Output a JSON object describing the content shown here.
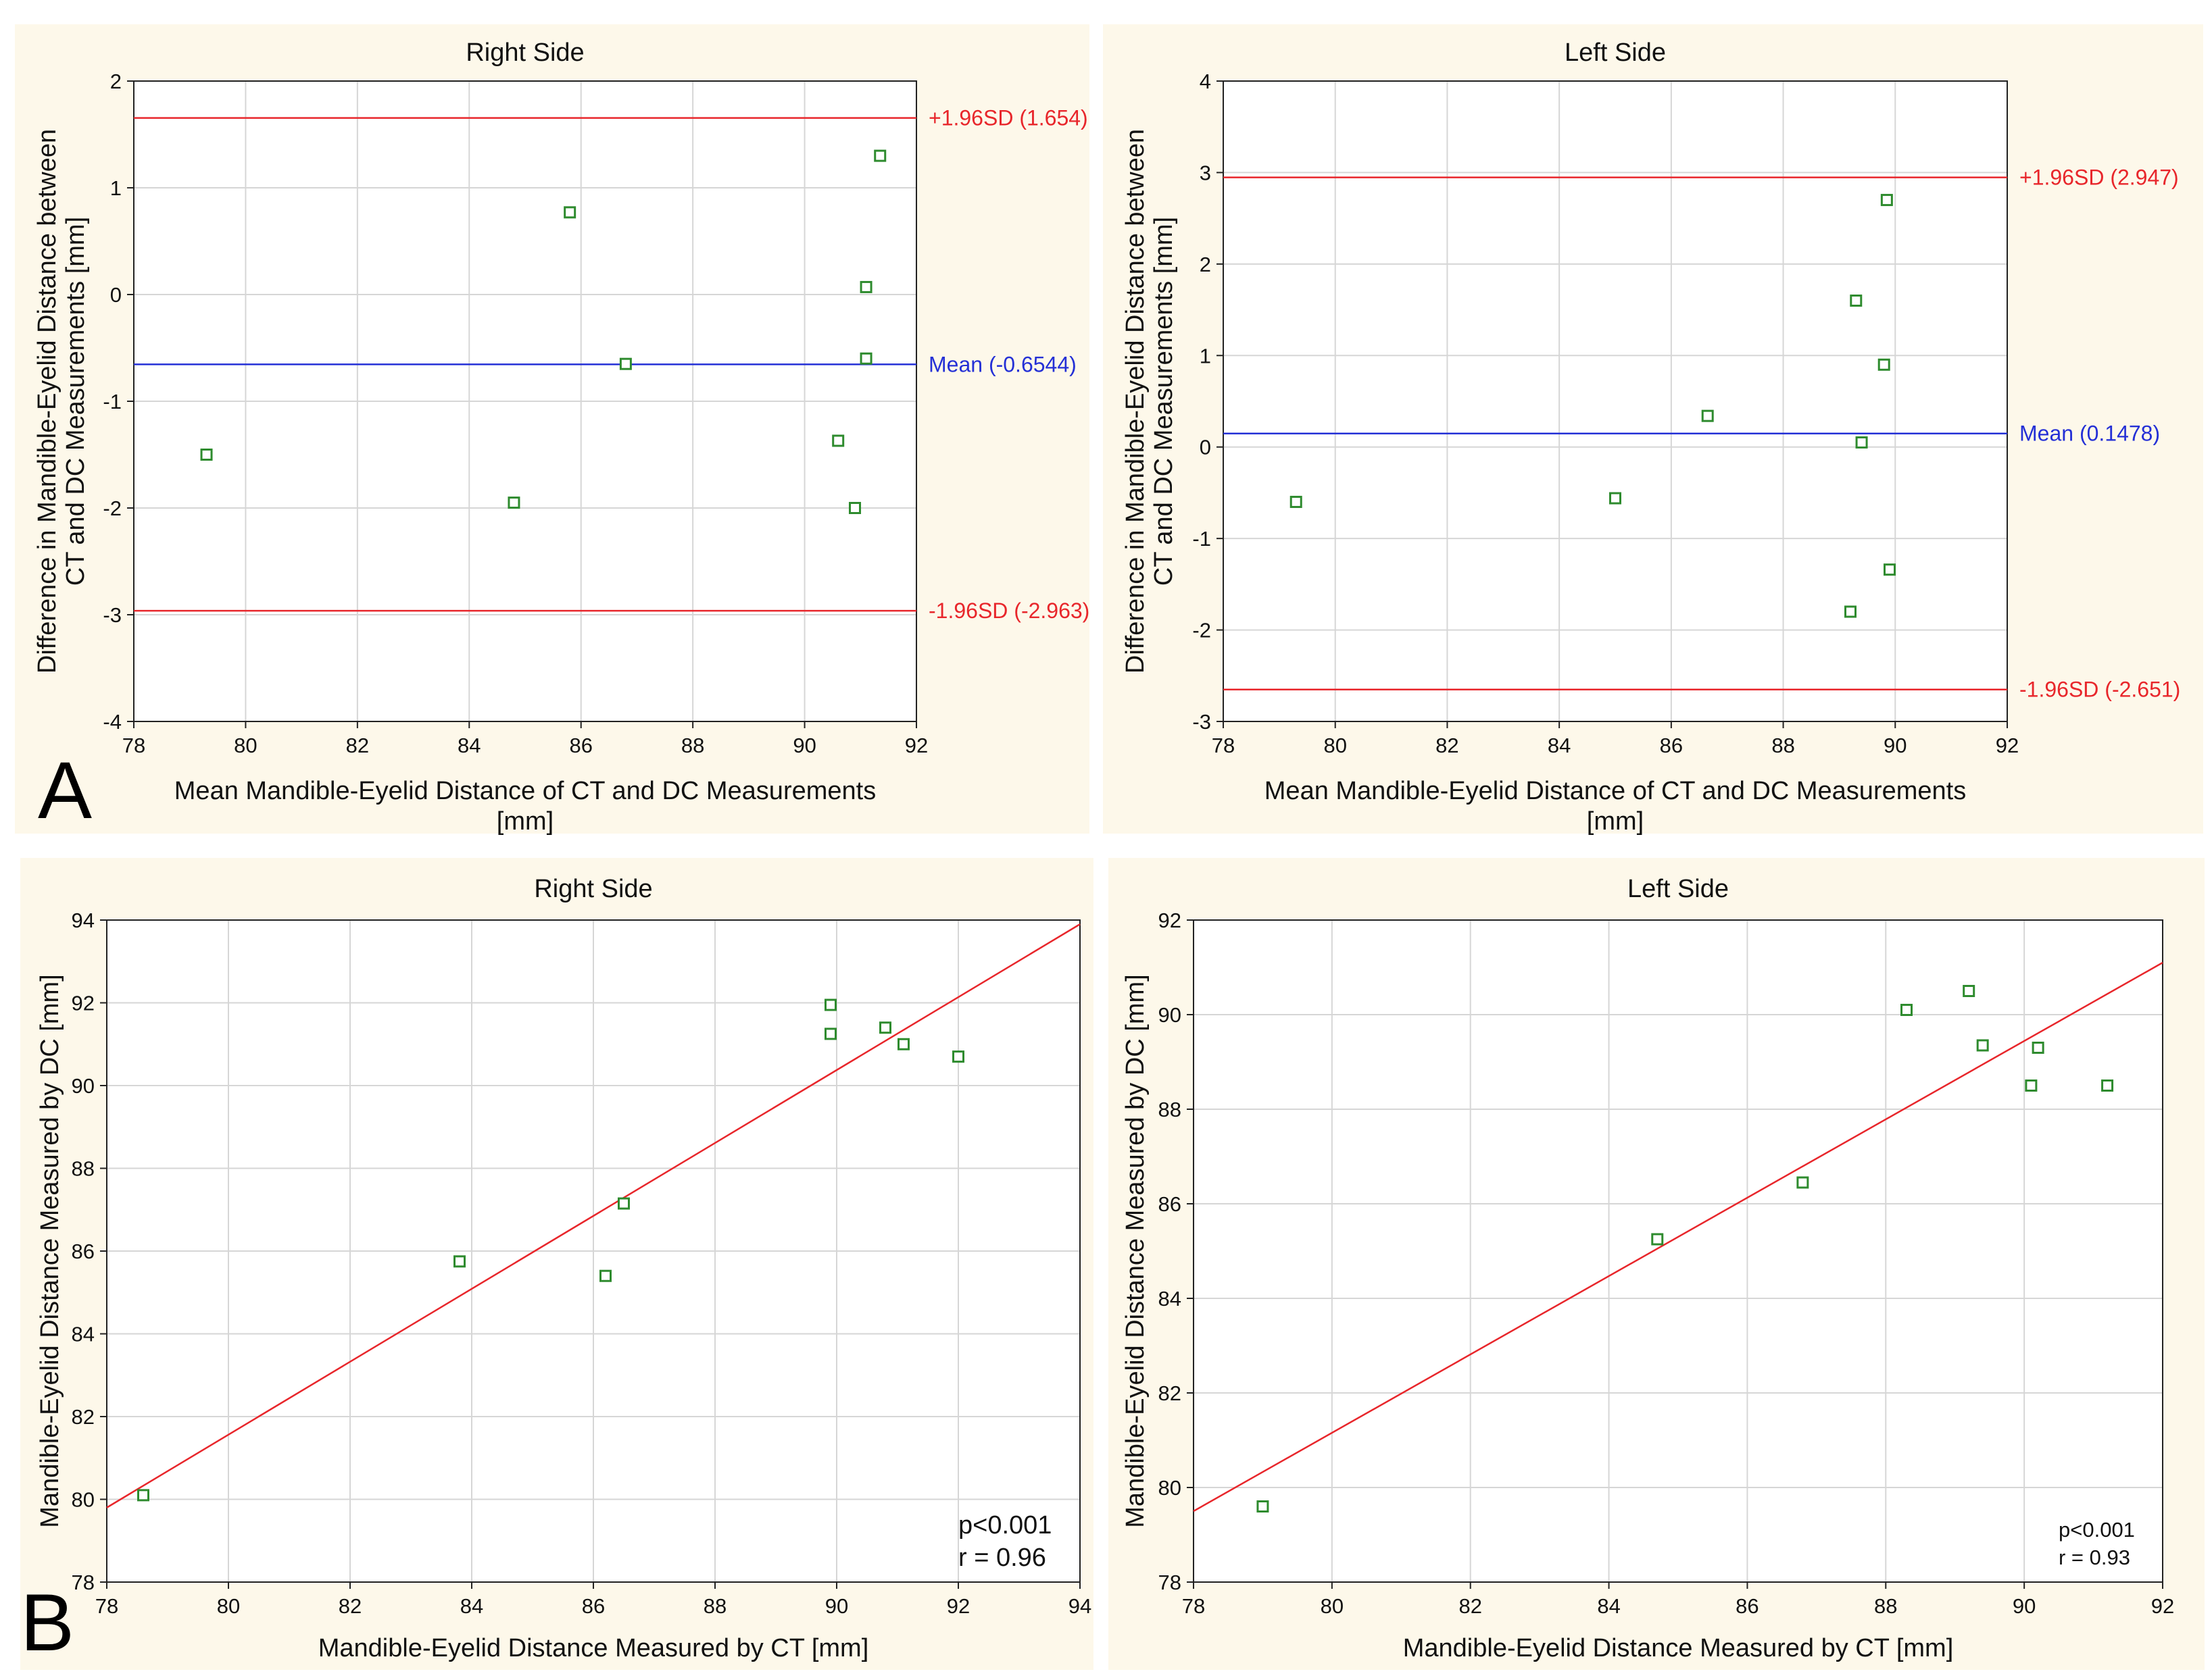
{
  "panel_labels": {
    "a": "A",
    "b": "B"
  },
  "colors": {
    "limit": "#e8262b",
    "mean": "#2430d6",
    "point": "#2e8b2e",
    "grid": "#d6d6d6",
    "panel_bg": "#fdf8ea",
    "fit": "#e8262b"
  },
  "chart_data": [
    {
      "id": "a-right",
      "type": "scatter",
      "title": "Right Side",
      "xlabel": "Mean Mandible-Eyelid Distance of CT and DC Measurements [mm]",
      "ylabel": "Difference in Mandible-Eyelid Distance between CT and DC Measurements [mm]",
      "xlim": [
        78,
        92
      ],
      "ylim": [
        -4,
        2
      ],
      "xticks": [
        78,
        80,
        82,
        84,
        86,
        88,
        90,
        92
      ],
      "yticks": [
        -4,
        -3,
        -2,
        -1,
        0,
        1,
        2
      ],
      "points": [
        [
          79.3,
          -1.5
        ],
        [
          84.8,
          -1.95
        ],
        [
          85.8,
          0.77
        ],
        [
          86.8,
          -0.65
        ],
        [
          90.6,
          -1.37
        ],
        [
          90.9,
          -2.0
        ],
        [
          91.1,
          0.07
        ],
        [
          91.1,
          -0.6
        ],
        [
          91.35,
          1.3
        ]
      ],
      "hlines": [
        {
          "value": 1.654,
          "label": "+1.96SD (1.654)",
          "kind": "limit"
        },
        {
          "value": -0.6544,
          "label": "Mean (-0.6544)",
          "kind": "mean"
        },
        {
          "value": -2.963,
          "label": "-1.96SD (-2.963)",
          "kind": "limit"
        }
      ]
    },
    {
      "id": "a-left",
      "type": "scatter",
      "title": "Left Side",
      "xlabel": "Mean Mandible-Eyelid Distance of CT and DC Measurements [mm]",
      "ylabel": "Difference in Mandible-Eyelid Distance between CT and DC Measurements [mm]",
      "xlim": [
        78,
        92
      ],
      "ylim": [
        -3,
        4
      ],
      "xticks": [
        78,
        80,
        82,
        84,
        86,
        88,
        90,
        92
      ],
      "yticks": [
        -3,
        -2,
        -1,
        0,
        1,
        2,
        3,
        4
      ],
      "points": [
        [
          79.3,
          -0.6
        ],
        [
          85.0,
          -0.56
        ],
        [
          86.65,
          0.34
        ],
        [
          89.2,
          -1.8
        ],
        [
          89.3,
          1.6
        ],
        [
          89.4,
          0.05
        ],
        [
          89.8,
          0.9
        ],
        [
          89.85,
          2.7
        ],
        [
          89.9,
          -1.34
        ]
      ],
      "hlines": [
        {
          "value": 2.947,
          "label": "+1.96SD (2.947)",
          "kind": "limit"
        },
        {
          "value": 0.1478,
          "label": "Mean (0.1478)",
          "kind": "mean"
        },
        {
          "value": -2.651,
          "label": "-1.96SD (-2.651)",
          "kind": "limit"
        }
      ]
    },
    {
      "id": "b-right",
      "type": "scatter",
      "title": "Right Side",
      "xlabel": "Mandible-Eyelid Distance Measured by CT [mm]",
      "ylabel": "Mandible-Eyelid Distance Measured by DC [mm]",
      "xlim": [
        78,
        94
      ],
      "ylim": [
        78,
        94
      ],
      "xticks": [
        78,
        80,
        82,
        84,
        86,
        88,
        90,
        92,
        94
      ],
      "yticks": [
        78,
        80,
        82,
        84,
        86,
        88,
        90,
        92,
        94
      ],
      "points": [
        [
          78.6,
          80.1
        ],
        [
          83.8,
          85.75
        ],
        [
          86.2,
          85.4
        ],
        [
          86.5,
          87.15
        ],
        [
          89.9,
          91.95
        ],
        [
          89.9,
          91.25
        ],
        [
          90.8,
          91.4
        ],
        [
          91.1,
          91.0
        ],
        [
          92.0,
          90.7
        ]
      ],
      "fit_line": {
        "x": [
          78,
          94
        ],
        "y": [
          79.8,
          93.9
        ]
      },
      "stats": [
        "p<0.001",
        "r = 0.96"
      ]
    },
    {
      "id": "b-left",
      "type": "scatter",
      "title": "Left Side",
      "xlabel": "Mandible-Eyelid Distance Measured by CT [mm]",
      "ylabel": "Mandible-Eyelid Distance Measured by DC [mm]",
      "xlim": [
        78,
        92
      ],
      "ylim": [
        78,
        92
      ],
      "xticks": [
        78,
        80,
        82,
        84,
        86,
        88,
        90,
        92
      ],
      "yticks": [
        78,
        80,
        82,
        84,
        86,
        88,
        90,
        92
      ],
      "points": [
        [
          79.0,
          79.6
        ],
        [
          84.7,
          85.25
        ],
        [
          86.8,
          86.45
        ],
        [
          88.3,
          90.1
        ],
        [
          89.2,
          90.5
        ],
        [
          89.4,
          89.35
        ],
        [
          90.1,
          88.5
        ],
        [
          90.2,
          89.3
        ],
        [
          91.2,
          88.5
        ]
      ],
      "fit_line": {
        "x": [
          78,
          92
        ],
        "y": [
          79.5,
          91.1
        ]
      },
      "stats": [
        "p<0.001",
        "r = 0.93"
      ]
    }
  ]
}
